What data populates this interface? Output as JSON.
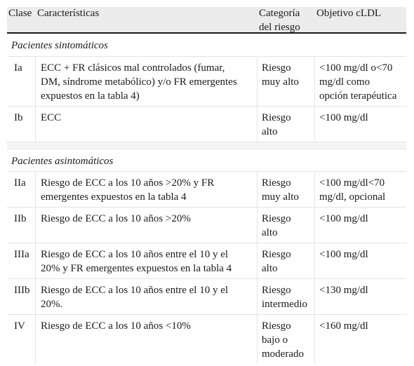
{
  "header": {
    "col1": "Clase",
    "col2": "Características",
    "col3": "Categoría\ndel riesgo",
    "col4": "Objetivo cLDL"
  },
  "sections": [
    {
      "title": "Pacientes sintomáticos",
      "rows": [
        {
          "clase": "Ia",
          "caracteristicas": "ECC + FR clásicos mal controlados (fumar,\nDM, síndrome metabólico) y/o FR emergentes\nexpuestos en la tabla 4)",
          "riesgo": "Riesgo\nmuy alto",
          "objetivo": "<100 mg/dl o<70\nmg/dl como\nopción terapéutica"
        },
        {
          "clase": "Ib",
          "caracteristicas": "ECC",
          "riesgo": "Riesgo\nalto",
          "objetivo": "<100 mg/dl"
        }
      ]
    },
    {
      "title": "Pacientes asintomáticos",
      "rows": [
        {
          "clase": "IIa",
          "caracteristicas": "Riesgo de ECC a los 10 años >20% y FR\nemergentes expuestos en la tabla 4",
          "riesgo": "Riesgo\nmuy alto",
          "objetivo": "<100 mg/dl<70\nmg/dl, opcional"
        },
        {
          "clase": "IIb",
          "caracteristicas": "Riesgo de ECC a los 10 años >20%",
          "riesgo": "Riesgo\nalto",
          "objetivo": "<100 mg/dl"
        },
        {
          "clase": "IIIa",
          "caracteristicas": "Riesgo de ECC a los 10 años entre el 10 y el\n20% y FR emergentes expuestos en la tabla 4",
          "riesgo": "Riesgo\nalto",
          "objetivo": "<100 mg/dl"
        },
        {
          "clase": "IIIb",
          "caracteristicas": "Riesgo de ECC a los 10 años entre el 10 y el\n20%.",
          "riesgo": "Riesgo\nintermedio",
          "objetivo": "<130 mg/dl"
        },
        {
          "clase": "IV",
          "caracteristicas": "Riesgo de ECC a los 10 años <10%",
          "riesgo": "Riesgo\nbajo o\nmoderado",
          "objetivo": "<160 mg/dl"
        }
      ]
    }
  ]
}
